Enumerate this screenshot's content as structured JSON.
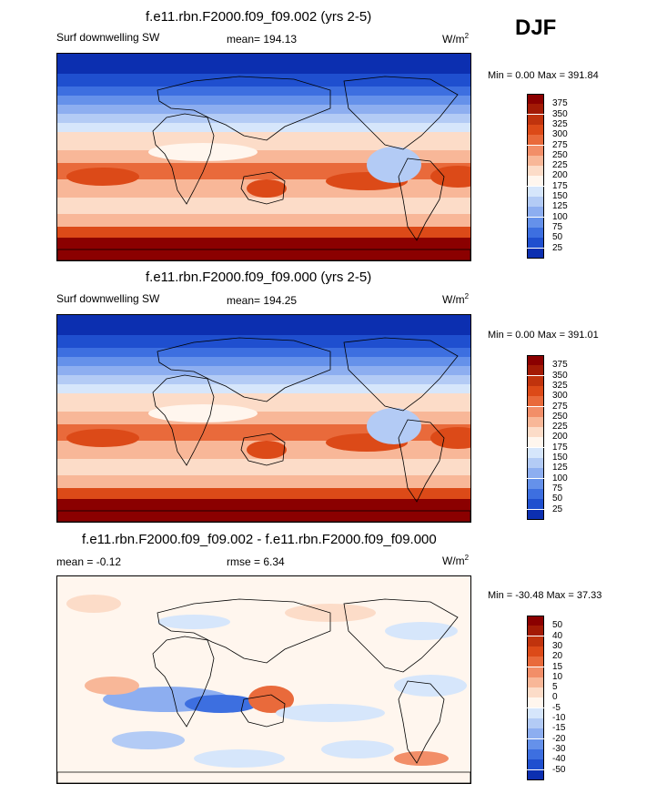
{
  "season": "DJF",
  "panels": [
    {
      "title": "f.e11.rbn.F2000.f09_f09.002 (yrs 2-5)",
      "left_label": "Surf downwelling SW",
      "mean_label": "mean=",
      "mean_value": "194.13",
      "units": "W/m",
      "units_sup": "2",
      "minmax": "Min =   0.00 Max = 391.84",
      "map_type": "absolute"
    },
    {
      "title": "f.e11.rbn.F2000.f09_f09.000 (yrs 2-5)",
      "left_label": "Surf downwelling SW",
      "mean_label": "mean=",
      "mean_value": "194.25",
      "units": "W/m",
      "units_sup": "2",
      "minmax": "Min =   0.00 Max = 391.01",
      "map_type": "absolute"
    },
    {
      "title": "f.e11.rbn.F2000.f09_f09.002 - f.e11.rbn.F2000.f09_f09.000",
      "left_label": "mean =  -0.12",
      "mean_label": "rmse =",
      "mean_value": "6.34",
      "units": "W/m",
      "units_sup": "2",
      "minmax": "Min = -30.48 Max =  37.33",
      "map_type": "difference"
    }
  ],
  "colorbar_abs": {
    "labels": [
      "375",
      "350",
      "325",
      "300",
      "275",
      "250",
      "225",
      "200",
      "175",
      "150",
      "125",
      "100",
      "75",
      "50",
      "25"
    ],
    "colors": [
      "#8b0000",
      "#a31a05",
      "#c0330d",
      "#dc4a18",
      "#e96a3b",
      "#f28e68",
      "#f8b798",
      "#fcdcc8",
      "#fff6ee",
      "#d6e6fb",
      "#b3cbf5",
      "#8daef0",
      "#6591ea",
      "#3d6fe0",
      "#1f4fcf",
      "#0c2fb0"
    ]
  },
  "colorbar_diff": {
    "labels": [
      "50",
      "40",
      "30",
      "20",
      "15",
      "10",
      "5",
      "0",
      "-5",
      "-10",
      "-15",
      "-20",
      "-30",
      "-40",
      "-50"
    ],
    "colors": [
      "#8b0000",
      "#a31a05",
      "#c0330d",
      "#dc4a18",
      "#e96a3b",
      "#f28e68",
      "#f8b798",
      "#fcdcc8",
      "#fff6ee",
      "#d6e6fb",
      "#b3cbf5",
      "#8daef0",
      "#6591ea",
      "#3d6fe0",
      "#1f4fcf",
      "#0c2fb0"
    ]
  }
}
